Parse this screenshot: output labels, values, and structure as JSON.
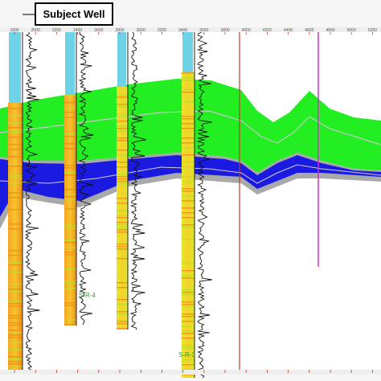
{
  "title": "Subject Well",
  "axis": {
    "ticks": [
      1800,
      2000,
      2200,
      2400,
      2600,
      2800,
      3000,
      3200,
      3400,
      3600,
      3800,
      4000,
      4200,
      4400,
      4600,
      4800,
      5000,
      5200
    ]
  },
  "wells": [
    {
      "label": "S-R-4"
    },
    {
      "label": "S-R-3"
    }
  ]
}
